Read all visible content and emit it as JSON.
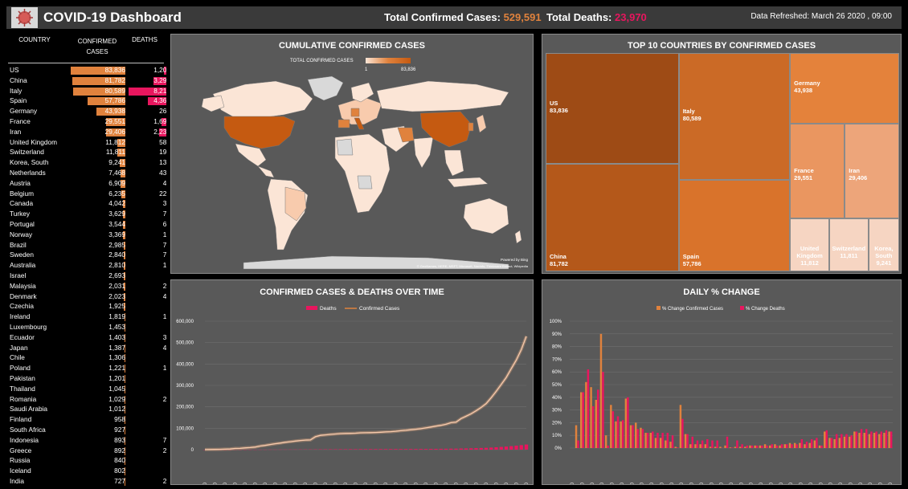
{
  "header": {
    "title": "COVID-19 Dashboard",
    "confirmed_label": "Total Confirmed Cases:",
    "confirmed_value": "529,591",
    "deaths_label": "Total Deaths:",
    "deaths_value": "23,970",
    "refreshed": "Data Refreshed: March 26 2020 , 09:00"
  },
  "colors": {
    "confirmed": "#e0823d",
    "deaths": "#e8165e",
    "panel": "#595959",
    "header": "#3a3a3a"
  },
  "table": {
    "headers": {
      "country": "COUNTRY",
      "confirmed": "CONFIRMED CASES",
      "deaths": "DEATHS"
    },
    "rows": [
      {
        "country": "US",
        "confirmed": "83,836",
        "deaths": "1,209",
        "c": 83836,
        "d": 1209
      },
      {
        "country": "China",
        "confirmed": "81,782",
        "deaths": "3,291",
        "c": 81782,
        "d": 3291
      },
      {
        "country": "Italy",
        "confirmed": "80,589",
        "deaths": "8,215",
        "c": 80589,
        "d": 8215
      },
      {
        "country": "Spain",
        "confirmed": "57,786",
        "deaths": "4,365",
        "c": 57786,
        "d": 4365
      },
      {
        "country": "Germany",
        "confirmed": "43,938",
        "deaths": "267",
        "c": 43938,
        "d": 267
      },
      {
        "country": "France",
        "confirmed": "29,551",
        "deaths": "1,698",
        "c": 29551,
        "d": 1698
      },
      {
        "country": "Iran",
        "confirmed": "29,406",
        "deaths": "2,234",
        "c": 29406,
        "d": 2234
      },
      {
        "country": "United Kingdom",
        "confirmed": "11,812",
        "deaths": "580",
        "c": 11812,
        "d": 580
      },
      {
        "country": "Switzerland",
        "confirmed": "11,811",
        "deaths": "191",
        "c": 11811,
        "d": 191
      },
      {
        "country": "Korea, South",
        "confirmed": "9,241",
        "deaths": "131",
        "c": 9241,
        "d": 131
      },
      {
        "country": "Netherlands",
        "confirmed": "7,468",
        "deaths": "435",
        "c": 7468,
        "d": 435
      },
      {
        "country": "Austria",
        "confirmed": "6,909",
        "deaths": "49",
        "c": 6909,
        "d": 49
      },
      {
        "country": "Belgium",
        "confirmed": "6,235",
        "deaths": "220",
        "c": 6235,
        "d": 220
      },
      {
        "country": "Canada",
        "confirmed": "4,042",
        "deaths": "38",
        "c": 4042,
        "d": 38
      },
      {
        "country": "Turkey",
        "confirmed": "3,629",
        "deaths": "75",
        "c": 3629,
        "d": 75
      },
      {
        "country": "Portugal",
        "confirmed": "3,544",
        "deaths": "60",
        "c": 3544,
        "d": 60
      },
      {
        "country": "Norway",
        "confirmed": "3,369",
        "deaths": "14",
        "c": 3369,
        "d": 14
      },
      {
        "country": "Brazil",
        "confirmed": "2,985",
        "deaths": "77",
        "c": 2985,
        "d": 77
      },
      {
        "country": "Sweden",
        "confirmed": "2,840",
        "deaths": "77",
        "c": 2840,
        "d": 77
      },
      {
        "country": "Australia",
        "confirmed": "2,810",
        "deaths": "13",
        "c": 2810,
        "d": 13
      },
      {
        "country": "Israel",
        "confirmed": "2,693",
        "deaths": "8",
        "c": 2693,
        "d": 8
      },
      {
        "country": "Malaysia",
        "confirmed": "2,031",
        "deaths": "23",
        "c": 2031,
        "d": 23
      },
      {
        "country": "Denmark",
        "confirmed": "2,023",
        "deaths": "41",
        "c": 2023,
        "d": 41
      },
      {
        "country": "Czechia",
        "confirmed": "1,925",
        "deaths": "9",
        "c": 1925,
        "d": 9
      },
      {
        "country": "Ireland",
        "confirmed": "1,819",
        "deaths": "19",
        "c": 1819,
        "d": 19
      },
      {
        "country": "Luxembourg",
        "confirmed": "1,453",
        "deaths": "9",
        "c": 1453,
        "d": 9
      },
      {
        "country": "Ecuador",
        "confirmed": "1,403",
        "deaths": "34",
        "c": 1403,
        "d": 34
      },
      {
        "country": "Japan",
        "confirmed": "1,387",
        "deaths": "47",
        "c": 1387,
        "d": 47
      },
      {
        "country": "Chile",
        "confirmed": "1,306",
        "deaths": "4",
        "c": 1306,
        "d": 4
      },
      {
        "country": "Poland",
        "confirmed": "1,221",
        "deaths": "16",
        "c": 1221,
        "d": 16
      },
      {
        "country": "Pakistan",
        "confirmed": "1,201",
        "deaths": "9",
        "c": 1201,
        "d": 9
      },
      {
        "country": "Thailand",
        "confirmed": "1,045",
        "deaths": "4",
        "c": 1045,
        "d": 4
      },
      {
        "country": "Romania",
        "confirmed": "1,029",
        "deaths": "23",
        "c": 1029,
        "d": 23
      },
      {
        "country": "Saudi Arabia",
        "confirmed": "1,012",
        "deaths": "3",
        "c": 1012,
        "d": 3
      },
      {
        "country": "Finland",
        "confirmed": "958",
        "deaths": "5",
        "c": 958,
        "d": 5
      },
      {
        "country": "South Africa",
        "confirmed": "927",
        "deaths": "-",
        "c": 927,
        "d": 0
      },
      {
        "country": "Indonesia",
        "confirmed": "893",
        "deaths": "78",
        "c": 893,
        "d": 78
      },
      {
        "country": "Greece",
        "confirmed": "892",
        "deaths": "26",
        "c": 892,
        "d": 26
      },
      {
        "country": "Russia",
        "confirmed": "840",
        "deaths": "3",
        "c": 840,
        "d": 3
      },
      {
        "country": "Iceland",
        "confirmed": "802",
        "deaths": "2",
        "c": 802,
        "d": 2
      },
      {
        "country": "India",
        "confirmed": "727",
        "deaths": "20",
        "c": 727,
        "d": 20
      }
    ]
  },
  "map": {
    "title": "CUMULATIVE CONFIRMED CASES",
    "legend_label": "TOTAL CONFIRMED CASES",
    "legend_min": "1",
    "legend_max": "83,836",
    "powered_by": "Powered by Bing",
    "credits": "© GeoNames, HERE, MSFT, Microsoft, Navinfo, Thinkware Extract, Wikipedia"
  },
  "treemap": {
    "title": "TOP 10 COUNTRIES BY CONFIRMED CASES",
    "items": [
      {
        "name": "US",
        "value": "83,836",
        "v": 83836
      },
      {
        "name": "China",
        "value": "81,782",
        "v": 81782
      },
      {
        "name": "Italy",
        "value": "80,589",
        "v": 80589
      },
      {
        "name": "Spain",
        "value": "57,786",
        "v": 57786
      },
      {
        "name": "Germany",
        "value": "43,938",
        "v": 43938
      },
      {
        "name": "France",
        "value": "29,551",
        "v": 29551
      },
      {
        "name": "Iran",
        "value": "29,406",
        "v": 29406
      },
      {
        "name": "United Kingdom",
        "value": "11,812",
        "v": 11812
      },
      {
        "name": "Switzerland",
        "value": "11,811",
        "v": 11811
      },
      {
        "name": "Korea, South",
        "value": "9,241",
        "v": 9241
      }
    ]
  },
  "chart_data": [
    {
      "type": "line",
      "title": "CONFIRMED CASES & DEATHS OVER TIME",
      "x_start": "1/22/2020",
      "x_end": "3/26/2020",
      "x_tick_labels": [
        "1/22/2020",
        "1/24/2020",
        "1/26/2020",
        "1/28/2020",
        "1/30/2020",
        "2/1/2020",
        "2/3/2020",
        "2/5/2020",
        "2/7/2020",
        "2/9/2020",
        "2/11/2020",
        "2/13/2020",
        "2/15/2020",
        "2/17/2020",
        "2/19/2020",
        "2/21/2020",
        "2/23/2020",
        "2/25/2020",
        "2/27/2020",
        "2/29/2020",
        "3/2/2020",
        "3/4/2020",
        "3/6/2020",
        "3/8/2020",
        "3/10/2020",
        "3/12/2020",
        "3/14/2020",
        "3/16/2020",
        "3/18/2020",
        "3/20/2020",
        "3/22/2020",
        "3/24/2020",
        "3/26/2020"
      ],
      "y_tick_labels": [
        "0",
        "100,000",
        "200,000",
        "300,000",
        "400,000",
        "500,000",
        "600,000"
      ],
      "ylim": [
        0,
        600000
      ],
      "series": [
        {
          "name": "Deaths",
          "render": "bar",
          "values": [
            17,
            18,
            26,
            42,
            56,
            82,
            131,
            133,
            171,
            213,
            259,
            362,
            426,
            492,
            564,
            634,
            719,
            806,
            906,
            1013,
            1113,
            1118,
            1371,
            1523,
            1666,
            1770,
            1868,
            2007,
            2122,
            2247,
            2251,
            2458,
            2469,
            2629,
            2708,
            2770,
            2814,
            2872,
            2941,
            2996,
            3085,
            3160,
            3254,
            3348,
            3460,
            3558,
            3802,
            3988,
            4262,
            4615,
            4720,
            5404,
            5819,
            6440,
            7126,
            7905,
            8733,
            9867,
            11299,
            12973,
            14623,
            16497,
            18615,
            21181,
            23970
          ]
        },
        {
          "name": "Confirmed Cases",
          "render": "line",
          "values": [
            555,
            654,
            941,
            1434,
            2118,
            2927,
            5578,
            6166,
            8234,
            9927,
            12038,
            16787,
            19881,
            23892,
            27635,
            30817,
            34391,
            37120,
            40150,
            42762,
            44802,
            45221,
            60368,
            66885,
            69030,
            71224,
            73258,
            75136,
            75639,
            76197,
            76819,
            78572,
            78958,
            79561,
            80406,
            81388,
            82746,
            84112,
            86011,
            88369,
            90306,
            92840,
            95120,
            97886,
            101801,
            105847,
            109821,
            113590,
            118620,
            125875,
            128343,
            145193,
            156097,
            167449,
            181546,
            197168,
            214915,
            242713,
            272167,
            304528,
            336953,
            378235,
            418045,
            467653,
            529591
          ]
        }
      ]
    },
    {
      "type": "bar",
      "title": "DAILY % CHANGE",
      "x_start": "1/22/2020",
      "x_end": "3/26/2020",
      "x_tick_labels": [
        "1/22/2020",
        "1/24/2020",
        "1/26/2020",
        "1/28/2020",
        "1/30/2020",
        "2/1/2020",
        "2/3/2020",
        "2/5/2020",
        "2/7/2020",
        "2/9/2020",
        "2/11/2020",
        "2/13/2020",
        "2/15/2020",
        "2/17/2020",
        "2/19/2020",
        "2/21/2020",
        "2/23/2020",
        "2/25/2020",
        "2/27/2020",
        "2/29/2020",
        "3/2/2020",
        "3/4/2020",
        "3/6/2020",
        "3/8/2020",
        "3/10/2020",
        "3/12/2020",
        "3/14/2020",
        "3/16/2020",
        "3/18/2020",
        "3/20/2020",
        "3/22/2020",
        "3/24/2020",
        "3/26/2020"
      ],
      "y_tick_labels": [
        "0%",
        "10%",
        "20%",
        "30%",
        "40%",
        "50%",
        "60%",
        "70%",
        "80%",
        "90%",
        "100%"
      ],
      "ylim": [
        0,
        1
      ],
      "series": [
        {
          "name": "% Change Confirmed Cases",
          "values": [
            0,
            0.18,
            0.44,
            0.52,
            0.48,
            0.38,
            0.9,
            0.1,
            0.34,
            0.21,
            0.21,
            0.39,
            0.18,
            0.2,
            0.16,
            0.12,
            0.12,
            0.08,
            0.08,
            0.06,
            0.05,
            0.01,
            0.34,
            0.11,
            0.03,
            0.03,
            0.03,
            0.03,
            0.01,
            0.01,
            0.01,
            0.02,
            0.005,
            0.01,
            0.01,
            0.01,
            0.02,
            0.02,
            0.02,
            0.03,
            0.02,
            0.03,
            0.02,
            0.03,
            0.04,
            0.04,
            0.04,
            0.03,
            0.04,
            0.06,
            0.02,
            0.13,
            0.08,
            0.07,
            0.08,
            0.09,
            0.09,
            0.13,
            0.12,
            0.12,
            0.11,
            0.12,
            0.11,
            0.12,
            0.13
          ]
        },
        {
          "name": "% Change Deaths",
          "values": [
            0,
            0.06,
            0.44,
            0.62,
            0.33,
            0.46,
            0.6,
            0.02,
            0.29,
            0.25,
            0.22,
            0.4,
            0.18,
            0.15,
            0.15,
            0.12,
            0.13,
            0.12,
            0.12,
            0.12,
            0.1,
            0.005,
            0.23,
            0.11,
            0.09,
            0.06,
            0.06,
            0.07,
            0.06,
            0.06,
            0.002,
            0.09,
            0.004,
            0.06,
            0.03,
            0.02,
            0.02,
            0.02,
            0.02,
            0.02,
            0.03,
            0.02,
            0.03,
            0.03,
            0.03,
            0.03,
            0.07,
            0.05,
            0.07,
            0.08,
            0.02,
            0.14,
            0.08,
            0.11,
            0.11,
            0.11,
            0.1,
            0.13,
            0.15,
            0.15,
            0.13,
            0.13,
            0.13,
            0.14,
            0.13
          ]
        }
      ]
    }
  ]
}
